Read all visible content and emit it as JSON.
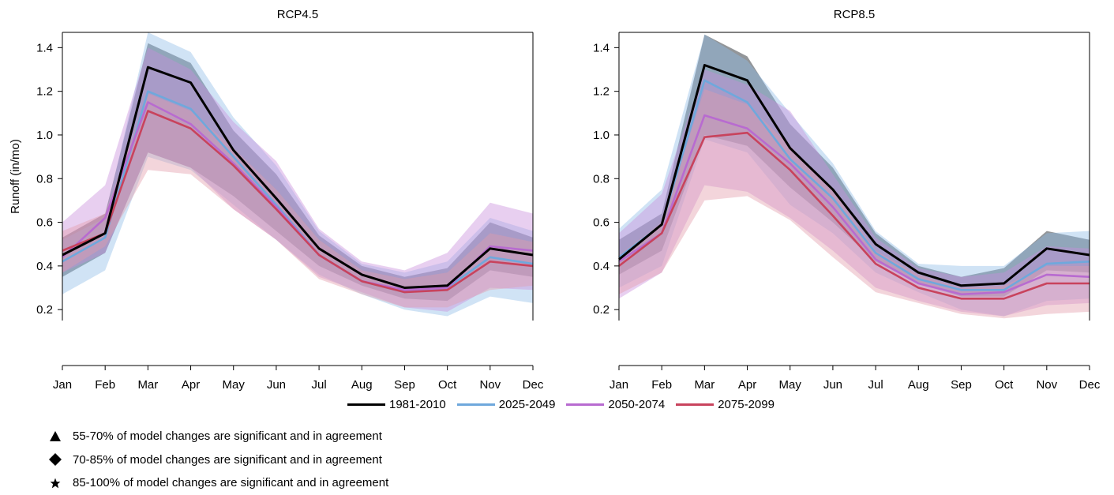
{
  "chart_data": [
    {
      "type": "line",
      "title": "RCP4.5",
      "xlabel": "",
      "ylabel": "Runoff (in/mo)",
      "categories": [
        "Jan",
        "Feb",
        "Mar",
        "Apr",
        "May",
        "Jun",
        "Jul",
        "Aug",
        "Sep",
        "Oct",
        "Nov",
        "Dec"
      ],
      "ylim": [
        0.15,
        1.47
      ],
      "yticks": [
        "0.2",
        "0.4",
        "0.6",
        "0.8",
        "1.0",
        "1.2",
        "1.4"
      ],
      "grid": false,
      "series": [
        {
          "name": "1981-2010",
          "color": "#000000",
          "band_color": "#3a3f45",
          "values": [
            0.45,
            0.55,
            1.31,
            1.24,
            0.93,
            0.71,
            0.48,
            0.36,
            0.3,
            0.31,
            0.48,
            0.45
          ],
          "lower": [
            0.35,
            0.46,
            0.92,
            0.85,
            0.72,
            0.56,
            0.4,
            0.31,
            0.25,
            0.24,
            0.38,
            0.35
          ],
          "upper": [
            0.53,
            0.64,
            1.42,
            1.33,
            1.02,
            0.82,
            0.54,
            0.4,
            0.35,
            0.39,
            0.6,
            0.53
          ]
        },
        {
          "name": "2025-2049",
          "color": "#6fa8dc",
          "band_color": "#8fbde8",
          "values": [
            0.42,
            0.53,
            1.2,
            1.12,
            0.9,
            0.68,
            0.45,
            0.33,
            0.28,
            0.3,
            0.44,
            0.41
          ],
          "lower": [
            0.27,
            0.38,
            0.9,
            0.84,
            0.68,
            0.52,
            0.36,
            0.27,
            0.2,
            0.17,
            0.26,
            0.23
          ],
          "upper": [
            0.52,
            0.62,
            1.47,
            1.38,
            1.08,
            0.86,
            0.56,
            0.41,
            0.37,
            0.42,
            0.62,
            0.56
          ]
        },
        {
          "name": "2050-2074",
          "color": "#b86bd0",
          "band_color": "#c98cdc",
          "values": [
            0.44,
            0.62,
            1.15,
            1.05,
            0.87,
            0.67,
            0.45,
            0.33,
            0.29,
            0.3,
            0.49,
            0.47
          ],
          "lower": [
            0.37,
            0.46,
            0.92,
            0.85,
            0.66,
            0.52,
            0.35,
            0.28,
            0.21,
            0.19,
            0.3,
            0.29
          ],
          "upper": [
            0.6,
            0.77,
            1.4,
            1.3,
            1.06,
            0.88,
            0.57,
            0.42,
            0.38,
            0.46,
            0.69,
            0.64
          ]
        },
        {
          "name": "2075-2099",
          "color": "#c8435d",
          "band_color": "#e39aa9",
          "values": [
            0.47,
            0.55,
            1.11,
            1.03,
            0.86,
            0.66,
            0.45,
            0.33,
            0.28,
            0.29,
            0.42,
            0.4
          ],
          "lower": [
            0.37,
            0.49,
            0.84,
            0.82,
            0.66,
            0.52,
            0.34,
            0.27,
            0.21,
            0.21,
            0.29,
            0.31
          ],
          "upper": [
            0.56,
            0.64,
            1.19,
            1.11,
            0.94,
            0.75,
            0.52,
            0.38,
            0.34,
            0.37,
            0.55,
            0.51
          ]
        }
      ]
    },
    {
      "type": "line",
      "title": "RCP8.5",
      "xlabel": "",
      "ylabel": "",
      "categories": [
        "Jan",
        "Feb",
        "Mar",
        "Apr",
        "May",
        "Jun",
        "Jul",
        "Aug",
        "Sep",
        "Oct",
        "Nov",
        "Dec"
      ],
      "ylim": [
        0.15,
        1.47
      ],
      "yticks": [
        "0.2",
        "0.4",
        "0.6",
        "0.8",
        "1.0",
        "1.2",
        "1.4"
      ],
      "grid": false,
      "series": [
        {
          "name": "1981-2010",
          "color": "#000000",
          "band_color": "#3a3f45",
          "values": [
            0.43,
            0.59,
            1.32,
            1.25,
            0.94,
            0.75,
            0.5,
            0.37,
            0.31,
            0.32,
            0.48,
            0.45
          ],
          "lower": [
            0.36,
            0.47,
            1.0,
            0.95,
            0.76,
            0.6,
            0.42,
            0.32,
            0.26,
            0.26,
            0.38,
            0.37
          ],
          "upper": [
            0.52,
            0.64,
            1.46,
            1.36,
            1.05,
            0.85,
            0.55,
            0.4,
            0.35,
            0.39,
            0.56,
            0.52
          ]
        },
        {
          "name": "2025-2049",
          "color": "#6fa8dc",
          "band_color": "#8fbde8",
          "values": [
            0.44,
            0.59,
            1.25,
            1.15,
            0.89,
            0.71,
            0.46,
            0.34,
            0.29,
            0.29,
            0.41,
            0.42
          ],
          "lower": [
            0.3,
            0.4,
            0.98,
            0.92,
            0.68,
            0.55,
            0.37,
            0.28,
            0.2,
            0.17,
            0.24,
            0.25
          ],
          "upper": [
            0.57,
            0.75,
            1.46,
            1.34,
            1.1,
            0.87,
            0.56,
            0.41,
            0.4,
            0.4,
            0.55,
            0.56
          ]
        },
        {
          "name": "2050-2074",
          "color": "#b86bd0",
          "band_color": "#c98cdc",
          "values": [
            0.42,
            0.55,
            1.09,
            1.03,
            0.87,
            0.67,
            0.43,
            0.32,
            0.27,
            0.28,
            0.36,
            0.35
          ],
          "lower": [
            0.25,
            0.37,
            0.77,
            0.74,
            0.62,
            0.47,
            0.3,
            0.24,
            0.19,
            0.17,
            0.22,
            0.23
          ],
          "upper": [
            0.55,
            0.73,
            1.3,
            1.23,
            1.11,
            0.82,
            0.53,
            0.39,
            0.35,
            0.37,
            0.49,
            0.48
          ]
        },
        {
          "name": "2075-2099",
          "color": "#c8435d",
          "band_color": "#e39aa9",
          "values": [
            0.4,
            0.55,
            0.99,
            1.01,
            0.84,
            0.63,
            0.41,
            0.3,
            0.25,
            0.25,
            0.32,
            0.32
          ],
          "lower": [
            0.27,
            0.37,
            0.7,
            0.72,
            0.61,
            0.44,
            0.28,
            0.23,
            0.18,
            0.16,
            0.18,
            0.19
          ],
          "upper": [
            0.45,
            0.6,
            1.21,
            1.14,
            0.95,
            0.75,
            0.47,
            0.36,
            0.3,
            0.31,
            0.4,
            0.4
          ]
        }
      ]
    }
  ],
  "legend": {
    "items": [
      {
        "label": "1981-2010",
        "color": "#000000"
      },
      {
        "label": "2025-2049",
        "color": "#6fa8dc"
      },
      {
        "label": "2050-2074",
        "color": "#b86bd0"
      },
      {
        "label": "2075-2099",
        "color": "#c8435d"
      }
    ]
  },
  "notes": [
    {
      "symbol": "triangle-icon",
      "text": "55-70% of model changes are significant and in agreement"
    },
    {
      "symbol": "diamond-icon",
      "text": "70-85% of model changes are significant and in agreement"
    },
    {
      "symbol": "star-icon",
      "text": "85-100% of model changes are significant and in agreement"
    }
  ]
}
